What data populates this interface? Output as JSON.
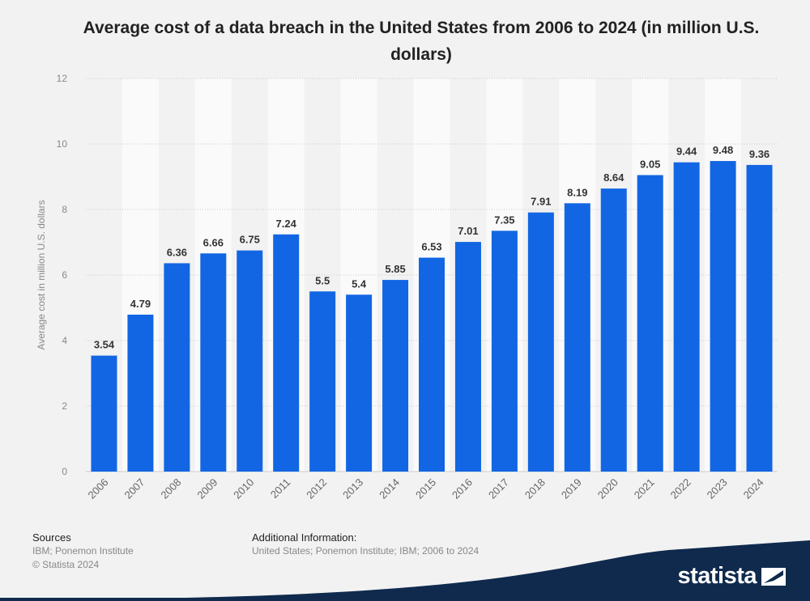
{
  "chart_data": {
    "type": "bar",
    "title": "Average cost of a data breach in the United States from 2006 to 2024 (in million U.S. dollars)",
    "ylabel": "Average cost in million U.S. dollars",
    "xlabel": "",
    "ylim": [
      0,
      12
    ],
    "yticks": [
      "0",
      "2",
      "4",
      "6",
      "8",
      "10",
      "12"
    ],
    "categories": [
      "2006",
      "2007",
      "2008",
      "2009",
      "2010",
      "2011",
      "2012",
      "2013",
      "2014",
      "2015",
      "2016",
      "2017",
      "2018",
      "2019",
      "2020",
      "2021",
      "2022",
      "2023",
      "2024"
    ],
    "values": [
      3.54,
      4.79,
      6.36,
      6.66,
      6.75,
      7.24,
      5.5,
      5.4,
      5.85,
      6.53,
      7.01,
      7.35,
      7.91,
      8.19,
      8.64,
      9.05,
      9.44,
      9.48,
      9.36
    ],
    "value_labels": [
      "3.54",
      "4.79",
      "6.36",
      "6.66",
      "6.75",
      "7.24",
      "5.5",
      "5.4",
      "5.85",
      "6.53",
      "7.01",
      "7.35",
      "7.91",
      "8.19",
      "8.64",
      "9.05",
      "9.44",
      "9.48",
      "9.36"
    ],
    "bar_color": "#1266e3",
    "grid": true,
    "legend": "none"
  },
  "footer": {
    "sources_heading": "Sources",
    "sources_text": "IBM; Ponemon Institute",
    "copyright": "© Statista 2024",
    "additional_heading": "Additional Information:",
    "additional_text": "United States; Ponemon Institute; IBM; 2006 to 2024"
  },
  "brand": {
    "logo_text": "statista"
  }
}
